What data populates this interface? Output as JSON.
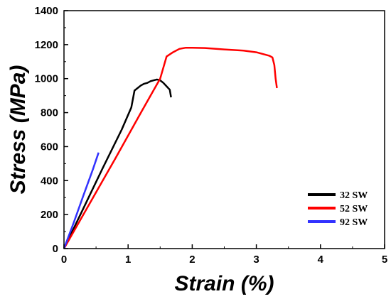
{
  "chart_data": {
    "type": "line",
    "xlabel": "Strain (%)",
    "ylabel": "Stress (MPa)",
    "xlim": [
      0,
      5
    ],
    "ylim": [
      0,
      1400
    ],
    "xticks": [
      0,
      1,
      2,
      3,
      4,
      5
    ],
    "yticks": [
      0,
      200,
      400,
      600,
      800,
      1000,
      1200,
      1400
    ],
    "grid": false,
    "legend_position": "bottom-right",
    "series": [
      {
        "name": "32 SW",
        "color": "#000000",
        "points": [
          [
            0,
            0
          ],
          [
            0.3,
            235
          ],
          [
            0.6,
            470
          ],
          [
            0.9,
            700
          ],
          [
            1.05,
            830
          ],
          [
            1.1,
            930
          ],
          [
            1.2,
            960
          ],
          [
            1.25,
            970
          ],
          [
            1.3,
            975
          ],
          [
            1.35,
            985
          ],
          [
            1.4,
            990
          ],
          [
            1.45,
            995
          ],
          [
            1.5,
            990
          ],
          [
            1.55,
            975
          ],
          [
            1.6,
            955
          ],
          [
            1.65,
            935
          ],
          [
            1.67,
            890
          ]
        ]
      },
      {
        "name": "52 SW",
        "color": "#ff0000",
        "points": [
          [
            0,
            0
          ],
          [
            0.4,
            265
          ],
          [
            0.8,
            530
          ],
          [
            1.2,
            800
          ],
          [
            1.5,
            1000
          ],
          [
            1.6,
            1130
          ],
          [
            1.7,
            1155
          ],
          [
            1.8,
            1175
          ],
          [
            1.9,
            1182
          ],
          [
            2.0,
            1182
          ],
          [
            2.2,
            1180
          ],
          [
            2.5,
            1172
          ],
          [
            2.8,
            1165
          ],
          [
            3.0,
            1155
          ],
          [
            3.2,
            1135
          ],
          [
            3.25,
            1125
          ],
          [
            3.28,
            1080
          ],
          [
            3.3,
            1000
          ],
          [
            3.32,
            945
          ]
        ]
      },
      {
        "name": "92 SW",
        "color": "#3232ff",
        "points": [
          [
            0,
            0
          ],
          [
            0.15,
            150
          ],
          [
            0.3,
            310
          ],
          [
            0.45,
            465
          ],
          [
            0.54,
            565
          ]
        ]
      }
    ]
  }
}
